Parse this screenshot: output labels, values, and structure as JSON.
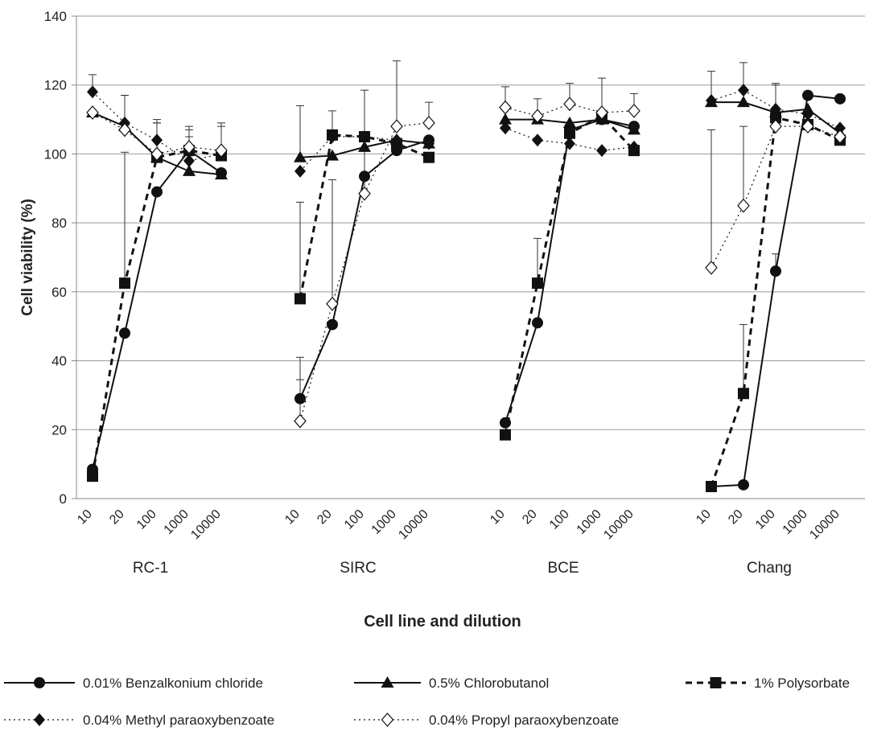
{
  "chart_data": {
    "type": "line",
    "xlabel": "Cell line and dilution",
    "ylabel": "Cell viability (%)",
    "ylim": [
      0,
      140
    ],
    "yticks": [
      0,
      20,
      40,
      60,
      80,
      100,
      120,
      140
    ],
    "grid": "horizontal",
    "legend_position": "bottom",
    "groups": [
      "RC-1",
      "SIRC",
      "BCE",
      "Chang"
    ],
    "dilutions": [
      "10",
      "20",
      "100",
      "1000",
      "10000"
    ],
    "series": [
      {
        "name": "0.01% Benzalkonium chloride",
        "marker": "circle",
        "line": "solid",
        "values": [
          [
            8.5,
            48,
            89,
            101,
            94.5
          ],
          [
            29,
            50.5,
            93.5,
            101,
            104
          ],
          [
            22,
            51,
            107,
            110,
            108
          ],
          [
            3.5,
            4,
            66,
            117,
            116
          ]
        ],
        "errors": [
          [
            0,
            0,
            0,
            0,
            0
          ],
          [
            12,
            0,
            0,
            0,
            0
          ],
          [
            0,
            0,
            0,
            0,
            0
          ],
          [
            0,
            0,
            5,
            0,
            0
          ]
        ]
      },
      {
        "name": "0.5% Chlorobutanol",
        "marker": "triangle",
        "line": "solid",
        "values": [
          [
            112,
            108,
            99,
            95,
            94
          ],
          [
            99,
            99.5,
            102,
            104,
            103
          ],
          [
            110,
            110,
            109,
            110,
            107
          ],
          [
            115,
            115,
            112,
            113,
            106
          ]
        ],
        "errors": [
          [
            0,
            0,
            0,
            0,
            0
          ],
          [
            15,
            0,
            0,
            0,
            0
          ],
          [
            0,
            0,
            0,
            0,
            0
          ],
          [
            9,
            0,
            0,
            0,
            0
          ]
        ]
      },
      {
        "name": "1% Polysorbate",
        "marker": "square",
        "line": "dashed",
        "values": [
          [
            6.5,
            62.5,
            99,
            101,
            99.5
          ],
          [
            58,
            105.5,
            105,
            103,
            99
          ],
          [
            18.5,
            62.5,
            106,
            111,
            101
          ],
          [
            3.5,
            30.5,
            110.5,
            108.5,
            104
          ]
        ],
        "errors": [
          [
            0,
            38,
            10,
            7,
            0
          ],
          [
            28,
            7,
            0,
            0,
            0
          ],
          [
            0,
            13,
            0,
            0,
            0
          ],
          [
            0,
            20,
            10,
            0,
            0
          ]
        ]
      },
      {
        "name": "0.04% Methyl paraoxybenzoate",
        "marker": "diamond",
        "line": "dotted",
        "values": [
          [
            118,
            109,
            104,
            98,
            100
          ],
          [
            95,
            105,
            105,
            104,
            103
          ],
          [
            107.5,
            104,
            103,
            101,
            102
          ],
          [
            115.5,
            118.5,
            113,
            111.5,
            107.5
          ]
        ],
        "errors": [
          [
            5,
            8,
            6,
            7,
            8
          ],
          [
            0,
            0,
            0,
            0,
            0
          ],
          [
            0,
            0,
            0,
            0,
            0
          ],
          [
            0,
            8,
            0,
            0,
            0
          ]
        ]
      },
      {
        "name": "0.04% Propyl paraoxybenzoate",
        "marker": "diamond-open",
        "line": "dotted",
        "values": [
          [
            112,
            107,
            100,
            102,
            101
          ],
          [
            22.5,
            56.5,
            88.5,
            108,
            109
          ],
          [
            113.5,
            111,
            114.5,
            112,
            112.5
          ],
          [
            67,
            85,
            108,
            108,
            105
          ]
        ],
        "errors": [
          [
            0,
            10,
            9,
            5,
            8
          ],
          [
            12,
            36,
            30,
            19,
            6
          ],
          [
            6,
            5,
            6,
            10,
            5
          ],
          [
            40,
            23,
            12,
            0,
            0
          ]
        ]
      }
    ]
  }
}
